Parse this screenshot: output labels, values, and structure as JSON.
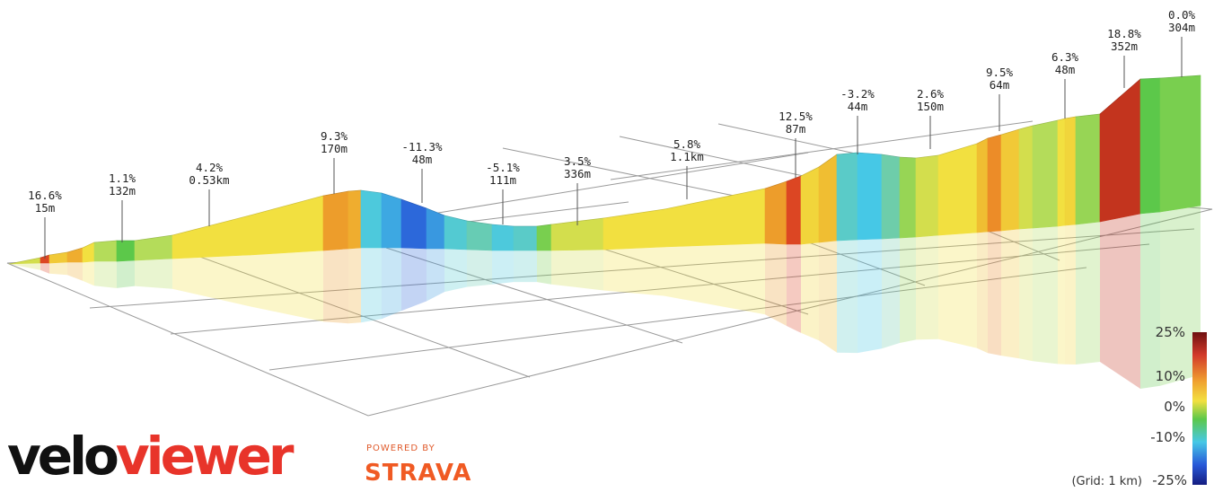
{
  "chart_data": {
    "type": "area",
    "gradient_scale": {
      "labels": [
        "25%",
        "10%",
        "0%",
        "-10%",
        "-25%"
      ],
      "grid_note": "(Grid: 1 km)"
    },
    "segments": [
      {
        "gradient": "16.6%",
        "length": "15m"
      },
      {
        "gradient": "1.1%",
        "length": "132m"
      },
      {
        "gradient": "4.2%",
        "length": "0.53km"
      },
      {
        "gradient": "9.3%",
        "length": "170m"
      },
      {
        "gradient": "-11.3%",
        "length": "48m"
      },
      {
        "gradient": "-5.1%",
        "length": "111m"
      },
      {
        "gradient": "3.5%",
        "length": "336m"
      },
      {
        "gradient": "5.8%",
        "length": "1.1km"
      },
      {
        "gradient": "12.5%",
        "length": "87m"
      },
      {
        "gradient": "-3.2%",
        "length": "44m"
      },
      {
        "gradient": "2.6%",
        "length": "150m"
      },
      {
        "gradient": "9.5%",
        "length": "64m"
      },
      {
        "gradient": "6.3%",
        "length": "48m"
      },
      {
        "gradient": "18.8%",
        "length": "352m"
      },
      {
        "gradient": "0.0%",
        "length": "304m"
      }
    ],
    "colors": {
      "max": "#b41f1f",
      "high": "#e8402a",
      "mid_high": "#f0d23c",
      "zero": "#5ac84a",
      "neg": "#4ac8e0",
      "min": "#1e3cb4"
    }
  },
  "branding": {
    "logo_part1": "velo",
    "logo_part2": "viewer",
    "powered_by": "POWERED BY",
    "strava": "STRAVA"
  }
}
